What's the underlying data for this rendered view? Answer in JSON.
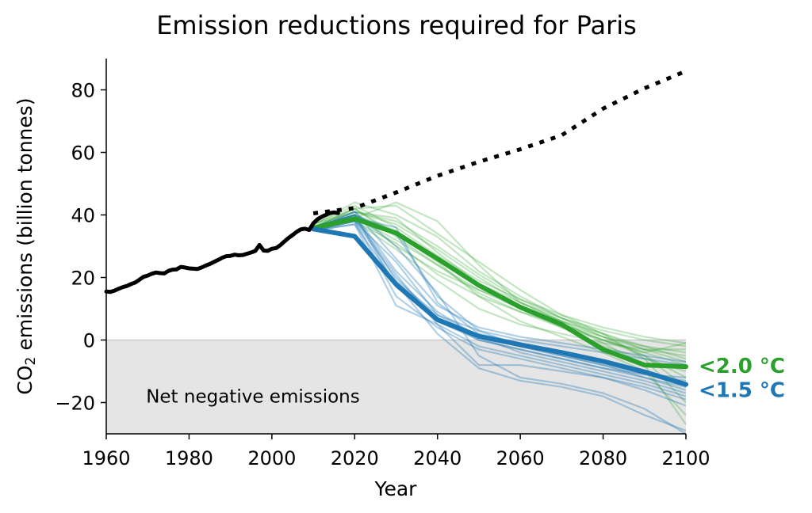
{
  "chart_data": {
    "type": "line",
    "title": "Emission reductions required for Paris",
    "xlabel": "Year",
    "ylabel": "CO2 emissions (billion tonnes)",
    "ylabel_main": "CO",
    "ylabel_sub": "2",
    "ylabel_rest": " emissions (billion tonnes)",
    "xlim": [
      1960,
      2100
    ],
    "ylim": [
      -30,
      90
    ],
    "xticks": [
      1960,
      1980,
      2000,
      2020,
      2040,
      2060,
      2080,
      2100
    ],
    "yticks": [
      -20,
      0,
      20,
      40,
      60,
      80
    ],
    "ytick_labels": [
      "−20",
      "0",
      "20",
      "40",
      "60",
      "80"
    ],
    "grid": false,
    "shaded_region": {
      "label": "Net negative emissions",
      "y_from": -30,
      "y_to": 0,
      "color": "#e5e5e5"
    },
    "colors": {
      "historical": "#000000",
      "baseline": "#000000",
      "two_c": "#2ca02c",
      "one_five_c": "#1f77b4"
    },
    "series": [
      {
        "name": "historical",
        "style": "solid",
        "x": [
          1960,
          1961,
          1962,
          1963,
          1964,
          1965,
          1966,
          1967,
          1968,
          1969,
          1970,
          1971,
          1972,
          1973,
          1974,
          1975,
          1976,
          1977,
          1978,
          1979,
          1980,
          1981,
          1982,
          1983,
          1984,
          1985,
          1986,
          1987,
          1988,
          1989,
          1990,
          1991,
          1992,
          1993,
          1994,
          1995,
          1996,
          1997,
          1998,
          1999,
          2000,
          2001,
          2002,
          2003,
          2004,
          2005,
          2006,
          2007,
          2008,
          2009,
          2010,
          2011,
          2012,
          2013,
          2014,
          2015,
          2016
        ],
        "y": [
          15.5,
          15.4,
          15.8,
          16.4,
          16.9,
          17.3,
          17.9,
          18.4,
          19.3,
          20.2,
          20.6,
          21.2,
          21.6,
          21.4,
          21.3,
          22.1,
          22.5,
          22.6,
          23.4,
          23.2,
          22.9,
          22.8,
          22.7,
          23.2,
          23.8,
          24.3,
          25.0,
          25.6,
          26.3,
          26.8,
          26.9,
          27.3,
          27.1,
          27.2,
          27.6,
          28.0,
          28.5,
          30.4,
          28.6,
          28.5,
          29.2,
          29.4,
          30.3,
          31.5,
          32.6,
          33.6,
          34.6,
          35.4,
          35.6,
          35.2,
          37.3,
          38.6,
          39.4,
          40.0,
          40.6,
          40.8,
          40.6
        ]
      },
      {
        "name": "baseline",
        "style": "dotted",
        "x": [
          2010,
          2020,
          2030,
          2040,
          2050,
          2060,
          2070,
          2080,
          2090,
          2100
        ],
        "y": [
          40.5,
          42.2,
          47.2,
          52.5,
          57.0,
          61.0,
          65.5,
          74.0,
          80.5,
          86.0
        ]
      },
      {
        "name": "<2.0 °C",
        "style": "bold",
        "x": [
          2010,
          2020,
          2030,
          2040,
          2050,
          2060,
          2070,
          2080,
          2090,
          2100
        ],
        "y": [
          35.8,
          38.8,
          34.2,
          26.0,
          17.5,
          10.5,
          5.0,
          -3.0,
          -8.0,
          -8.5
        ]
      },
      {
        "name": "<1.5 °C",
        "style": "bold",
        "x": [
          2010,
          2020,
          2030,
          2040,
          2050,
          2060,
          2070,
          2080,
          2090,
          2100
        ],
        "y": [
          35.5,
          33.2,
          17.8,
          6.5,
          1.2,
          -1.5,
          -4.0,
          -6.8,
          -10.2,
          -14.2
        ]
      }
    ],
    "ensemble_2c": [
      [
        36,
        41,
        39,
        28,
        18,
        12,
        7,
        3,
        0,
        -2
      ],
      [
        37,
        42,
        33,
        24,
        15,
        9,
        5,
        1,
        -3,
        -5
      ],
      [
        35,
        39,
        44,
        38,
        24,
        12,
        6,
        1,
        -2,
        -4
      ],
      [
        36,
        40,
        30,
        22,
        16,
        11,
        6,
        2,
        -2,
        -6
      ],
      [
        37,
        43,
        36,
        27,
        19,
        13,
        8,
        4,
        1,
        -1
      ],
      [
        35,
        38,
        31,
        21,
        14,
        9,
        4,
        0,
        -4,
        -8
      ],
      [
        36,
        41,
        38,
        30,
        21,
        13,
        7,
        2,
        -3,
        -7
      ],
      [
        36,
        40,
        35,
        26,
        17,
        10,
        4,
        -2,
        -6,
        -10
      ],
      [
        37,
        44,
        40,
        33,
        22,
        14,
        7,
        1,
        -5,
        -12
      ],
      [
        35,
        39,
        32,
        24,
        16,
        10,
        5,
        0,
        -5,
        -15
      ],
      [
        36,
        42,
        43,
        34,
        25,
        16,
        8,
        2,
        -6,
        -20
      ],
      [
        36,
        40,
        34,
        25,
        14,
        6,
        1,
        -4,
        -10,
        -24
      ],
      [
        37,
        41,
        37,
        29,
        20,
        12,
        6,
        -1,
        -8,
        -27
      ],
      [
        35,
        38,
        29,
        19,
        10,
        5,
        2,
        -1,
        -3,
        -3
      ],
      [
        36,
        42,
        34,
        26,
        18,
        11,
        5,
        0,
        -4,
        -1
      ]
    ],
    "ensemble_15c": [
      [
        36,
        40,
        17,
        6,
        0,
        -3,
        -6,
        -9,
        -12,
        -16
      ],
      [
        35,
        37,
        11,
        5,
        -8,
        -8,
        -10,
        -12,
        -15,
        -19
      ],
      [
        36,
        38,
        25,
        8,
        1,
        -2,
        -5,
        -8,
        -11,
        -13
      ],
      [
        36,
        39,
        21,
        5,
        -2,
        -5,
        -8,
        -11,
        -14,
        -18
      ],
      [
        35,
        41,
        30,
        15,
        -5,
        -12,
        -14,
        -17,
        -22,
        -30
      ],
      [
        36,
        40,
        19,
        8,
        3,
        0,
        -2,
        -4,
        -6,
        -8
      ],
      [
        35,
        38,
        14,
        4,
        -3,
        -6,
        -9,
        -12,
        -16,
        -21
      ],
      [
        36,
        39,
        36,
        12,
        2,
        -1,
        -4,
        -7,
        -10,
        -14
      ],
      [
        35,
        40,
        22,
        9,
        1,
        -4,
        -7,
        -10,
        -13,
        -17
      ],
      [
        36,
        41,
        26,
        11,
        4,
        1,
        -1,
        -3,
        -5,
        -7
      ],
      [
        35,
        37,
        18,
        2,
        -9,
        -13,
        -15,
        -18,
        -24,
        -29
      ],
      [
        36,
        40,
        34,
        14,
        3,
        -2,
        -5,
        -8,
        -12,
        -15
      ],
      [
        35,
        38,
        20,
        7,
        0,
        -3,
        -6,
        -9,
        -11,
        -12
      ]
    ],
    "end_labels": [
      {
        "text": "<2.0 °C",
        "color": "#2ca02c",
        "anchor_y": -8.0
      },
      {
        "text": "<1.5 °C",
        "color": "#1f77b4",
        "anchor_y": -14.2
      }
    ],
    "annotations": [
      {
        "text": "Net negative emissions",
        "x": 1970,
        "y": -18
      }
    ]
  }
}
